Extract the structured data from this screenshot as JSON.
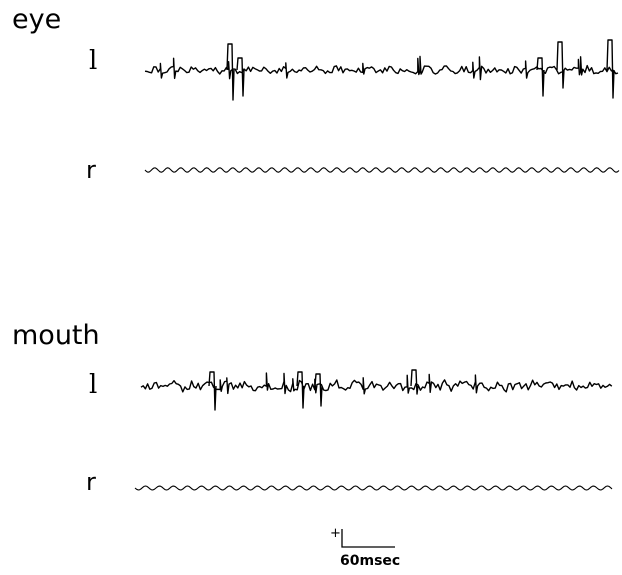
{
  "groups": [
    {
      "label": "eye",
      "left_label": "l",
      "right_label": "r"
    },
    {
      "label": "mouth",
      "left_label": "l",
      "right_label": "r"
    }
  ],
  "scale_bar": {
    "polarity": "+",
    "time": "60msec"
  }
}
